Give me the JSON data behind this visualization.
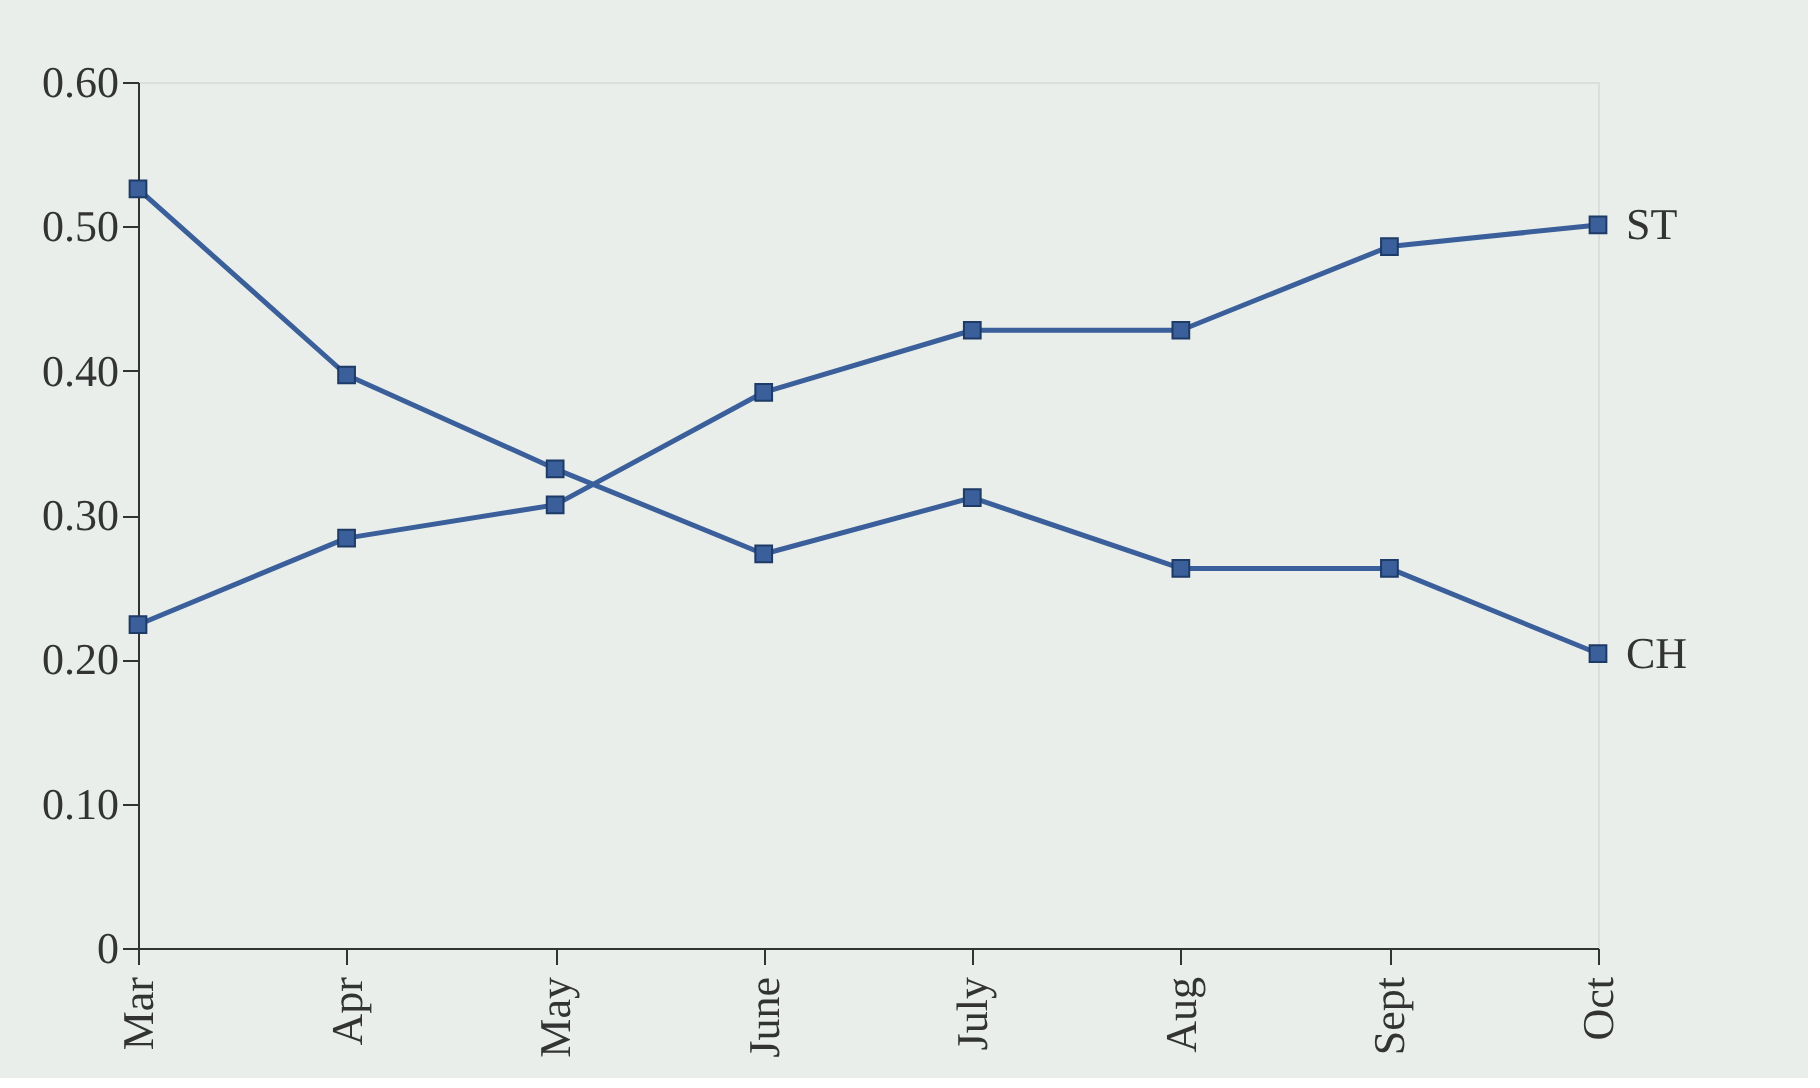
{
  "chart_data": {
    "type": "line",
    "categories": [
      "Mar",
      "Apr",
      "May",
      "June",
      "July",
      "Aug",
      "Sept",
      "Oct"
    ],
    "series": [
      {
        "name": "ST",
        "color": "#3a5f9a",
        "values": [
          0.224,
          0.284,
          0.307,
          0.385,
          0.428,
          0.428,
          0.486,
          0.501
        ]
      },
      {
        "name": "CH",
        "color": "#3a5f9a",
        "values": [
          0.526,
          0.397,
          0.332,
          0.273,
          0.312,
          0.263,
          0.263,
          0.204
        ]
      }
    ],
    "ylim": [
      0,
      0.6
    ],
    "yticks": [
      0,
      {
        "value": 0.1,
        "label": "0.10"
      },
      {
        "value": 0.2,
        "label": "0.20"
      },
      {
        "value": 0.3,
        "label": "0.30"
      },
      {
        "value": 0.4,
        "label": "0.40"
      },
      {
        "value": 0.5,
        "label": "0.50"
      },
      {
        "value": 0.6,
        "label": "0.60"
      }
    ],
    "marker": "square",
    "line_style": "solid",
    "grid": false,
    "legend": false
  }
}
